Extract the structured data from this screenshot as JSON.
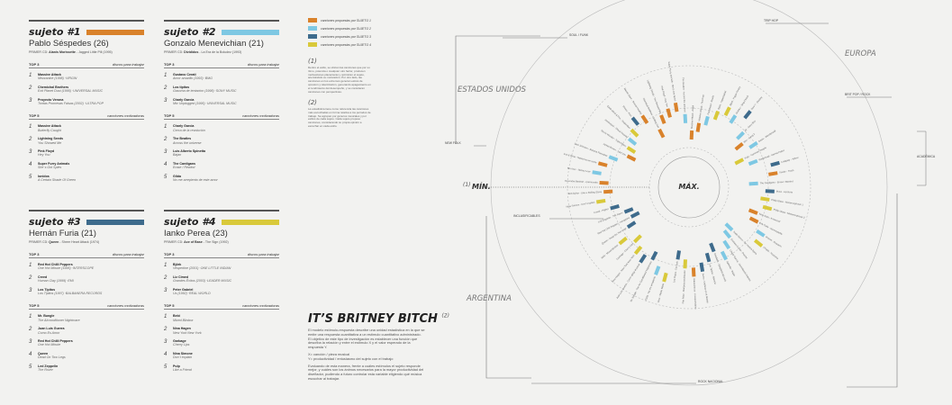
{
  "colors": {
    "s1": "#d9822b",
    "s2": "#7ec8e3",
    "s3": "#3e6b8c",
    "s4": "#d9c93a",
    "rule": "#555555",
    "axis": "#777777"
  },
  "labels": {
    "top3": "TOP 3",
    "top5": "TOP 5",
    "discos": "discos para trabajar",
    "canciones": "canciones motivadoras",
    "primer_cd": "PRIMER CD:"
  },
  "subjects": [
    {
      "tag": "sujeto #1",
      "name": "Pablo Séspedes (26)",
      "cd_artist": "Alanis Morissette",
      "cd_album": "- Jagged Little Pill (1995)",
      "albums": [
        {
          "n": "1",
          "t1": "Massive Attack",
          "t2": "Mezzanine (1998) ·VIRGIN"
        },
        {
          "n": "2",
          "t1": "Chemichal Brothers",
          "t2": "Exit Planet Dust (1995) ·UNIVERSAL MUSIC"
        },
        {
          "n": "3",
          "t1": "Proyecto Verona",
          "t2": "Tontas Promesas Falsas (2002) ·ULTRA POP"
        }
      ],
      "songs": [
        {
          "n": "1",
          "t1": "Massive Attack",
          "t2": "Butterfly Caught"
        },
        {
          "n": "2",
          "t1": "Lightning Seeds",
          "t2": "You Showed Me"
        },
        {
          "n": "3",
          "t1": "Pink Floyd",
          "t2": "Hey You"
        },
        {
          "n": "4",
          "t1": "Super Furry Animals",
          "t2": "She´s Got Spies"
        },
        {
          "n": "5",
          "t1": "Ionidos",
          "t2": "A Certain Shade Of Green"
        }
      ]
    },
    {
      "tag": "sujeto #2",
      "name": "Gonzalo Menevichian (21)",
      "cd_artist": "Divididos",
      "cd_album": "- La Era de la Boludez (1993)",
      "albums": [
        {
          "n": "1",
          "t1": "Gustavo Cerati",
          "t2": "Amor amarillo (1993) ·BMG"
        },
        {
          "n": "2",
          "t1": "Los tipitos",
          "t2": "Gasoma de tentacion (1998) ·SONY MUSIC"
        },
        {
          "n": "3",
          "t1": "Charly Garcia",
          "t2": "Mtv Unplugged (1995) ·UNIVERSAL MUSIC"
        }
      ],
      "songs": [
        {
          "n": "1",
          "t1": "Charly Garcia",
          "t2": "Cerca de la revolución"
        },
        {
          "n": "2",
          "t1": "The Beatles",
          "t2": "Across the universe"
        },
        {
          "n": "3",
          "t1": "Luis Alberto Spinetta",
          "t2": "Bajan"
        },
        {
          "n": "4",
          "t1": "The Cardigans",
          "t2": "Erase / Rewind"
        },
        {
          "n": "5",
          "t1": "Gilda",
          "t2": "No me arrepiento de este amor"
        }
      ]
    },
    {
      "tag": "sujeto #3",
      "name": "Hernán Furia (21)",
      "cd_artist": "Queen",
      "cd_album": "- Sheer Heart Attack (1974)",
      "albums": [
        {
          "n": "1",
          "t1": "Red Hot Chilli Peppers",
          "t2": "One Hot Minute (1995) ·INTERSCOPE"
        },
        {
          "n": "2",
          "t1": "Creed",
          "t2": "Human Clay (1999) ·EMI"
        },
        {
          "n": "3",
          "t1": "Los Tipitos",
          "t2": "Los Tipitos (1997) ·BALBANERA RECORDS"
        }
      ],
      "songs": [
        {
          "n": "1",
          "t1": "Mr. Bungle",
          "t2": "The Airconditioner Nightmare"
        },
        {
          "n": "2",
          "t1": "Juan Luis Guerra",
          "t2": "Como Es Amor"
        },
        {
          "n": "3",
          "t1": "Red Hot Chilli Peppers",
          "t2": "One Hot Minute"
        },
        {
          "n": "4",
          "t1": "Queen",
          "t2": "Dead On Two Legs"
        },
        {
          "n": "5",
          "t1": "Led Zeppelin",
          "t2": "The Rover"
        }
      ]
    },
    {
      "tag": "sujeto #4",
      "name": "Ianko Perea (23)",
      "cd_artist": "Ace of Base",
      "cd_album": "- The Sign (1992)",
      "albums": [
        {
          "n": "1",
          "t1": "Björk",
          "t2": "Vespertine (2001) ·ONE LITTLE INDIAN"
        },
        {
          "n": "2",
          "t1": "Liz Cimed",
          "t2": "Grandes Éxitos (2003) ·LEADER MUSIC"
        },
        {
          "n": "3",
          "t1": "Peter Gabriel",
          "t2": "Us (1992) ·REAL WORLD"
        }
      ],
      "songs": [
        {
          "n": "1",
          "t1": "Bebi",
          "t2": "Mixed Blinbox"
        },
        {
          "n": "2",
          "t1": "Nina Hagen",
          "t2": "New York New York"
        },
        {
          "n": "3",
          "t1": "Garbage",
          "t2": "Cherry Lips"
        },
        {
          "n": "4",
          "t1": "Nina Simone",
          "t2": "Don´t explain"
        },
        {
          "n": "5",
          "t1": "Pulp",
          "t2": "Like a Friend"
        }
      ]
    }
  ],
  "legend": [
    {
      "text": "canciones propuestas por SUJETO 1",
      "color": "#d9822b"
    },
    {
      "text": "canciones propuestas por SUJETO 2",
      "color": "#7ec8e3"
    },
    {
      "text": "canciones propuestas por SUJETO 3",
      "color": "#3e6b8c"
    },
    {
      "text": "canciones propuestas por SUJETO 4",
      "color": "#d9c93a"
    }
  ],
  "note1": {
    "head": "(1)",
    "text": "Dentro el estilo, se ubican las canciones que por su ritmo, potencia o cualquier otro factor, producen motivaciones placenteras y optimizan el sujeto, acercándolo su motivación. Por otro lado, las canciones en los extremos generan estrés de opresión y ralentización, generando apagamiento en el rendimiento del desempeño, y se consideran canciones con perspectivas."
  },
  "note2": {
    "head": "(2)",
    "text": "La estadística tiene como referencia las canciones más escuchadas en forma relativa a los períodos de trabajo. Se agrupan por géneros musicales y por estilos de cada sujeto. Cada sujeto propuso canciones, considerando su propia opinión a escuchar en cada estilo."
  },
  "britney": {
    "title": "IT’S BRITNEY BITCH",
    "sup": "(2)",
    "p1": "El modelo estímulo-respuesta describe una unidad estadística en la que se emite una respuesta cuantitativa a un estímulo cuantitativo administrado. El objetivo de este tipo de investigación es establecer una función que describa la relación y entre el estímulo X y el valor esperado de la respuesta Y.",
    "p2": "X= canción / pieza musical\nY= productividad / entusiasmo del sujeto con el trabajo",
    "p3": "Evaluando de esta manera, frente a cuáles estímulos el sujeto responde mejor, y cuáles son los ánimos necesarios para la mayor productividad del diseñador, pudiendo a futuro controlar esta variable eligiendo qué música escuchar al trabajar."
  },
  "chart_data": {
    "type": "radial-bar",
    "center_label": "MÁX.",
    "edge_label": "MÍN.",
    "edge_note": "(1)",
    "regions": [
      "ESTADOS UNIDOS",
      "EUROPA",
      "ARGENTINA"
    ],
    "genres": [
      "SOUL / FUNK",
      "TRIP HOP",
      "BRIT POP / ROCK",
      "ACADÉMICA",
      "ROCK NACIONAL",
      "INCLASIFICABLES",
      "NEW FOLK"
    ],
    "ring_scale": [
      "MÍN.",
      "MÁX."
    ],
    "series": [
      "SUJETO 1",
      "SUJETO 2",
      "SUJETO 3",
      "SUJETO 4"
    ],
    "songs": [
      {
        "label": "Massive Attack - Angel",
        "subject": 1,
        "value": 0.9
      },
      {
        "label": "Massive Attack - Teardrop",
        "subject": 1,
        "value": 0.8
      },
      {
        "label": "Portishead - Roads",
        "subject": 2,
        "value": 0.7
      },
      {
        "label": "Björk - Hyperballad",
        "subject": 4,
        "value": 0.6
      },
      {
        "label": "Björk - Pagan Poetry",
        "subject": 4,
        "value": 0.5
      },
      {
        "label": "Moloko - Sing it back",
        "subject": 2,
        "value": 0.55
      },
      {
        "label": "Zero 7 - Destiny",
        "subject": 3,
        "value": 0.4
      },
      {
        "label": "Air - Sexy Boy",
        "subject": 2,
        "value": 0.65
      },
      {
        "label": "Blur - Song 2",
        "subject": 1,
        "value": 0.75
      },
      {
        "label": "Oasis - Wonderwall",
        "subject": 2,
        "value": 0.6
      },
      {
        "label": "Pulp - Common People",
        "subject": 4,
        "value": 0.85
      },
      {
        "label": "Radiohead - Karma Police",
        "subject": 2,
        "value": 0.7
      },
      {
        "label": "Coldplay - Yellow",
        "subject": 3,
        "value": 0.45
      },
      {
        "label": "Suede - Trash",
        "subject": 1,
        "value": 0.5
      },
      {
        "label": "The Cardigans - Erase / Rewind",
        "subject": 2,
        "value": 0.75
      },
      {
        "label": "Muse - Hysteria",
        "subject": 3,
        "value": 0.55
      },
      {
        "label": "Philip Glass - Metamorphosis 1",
        "subject": 4,
        "value": 0.6
      },
      {
        "label": "Philip Glass - Metamorphosis 2",
        "subject": 4,
        "value": 0.55
      },
      {
        "label": "Nino Rota - Amarcord",
        "subject": 1,
        "value": 0.7
      },
      {
        "label": "Erik Satie - Gymnopedie",
        "subject": 1,
        "value": 0.65
      },
      {
        "label": "Mozart - Requiem",
        "subject": 2,
        "value": 0.5
      },
      {
        "label": "Chopin - Nocturne",
        "subject": 4,
        "value": 0.45
      },
      {
        "label": "Soda Stereo - De música ligera",
        "subject": 2,
        "value": 0.85
      },
      {
        "label": "Gustavo Cerati - Puente",
        "subject": 2,
        "value": 0.8
      },
      {
        "label": "Charly García - Demoliendo hoteles",
        "subject": 2,
        "value": 0.7
      },
      {
        "label": "Spinetta - Bajan",
        "subject": 2,
        "value": 0.6
      },
      {
        "label": "Divididos - Spaghetti del rock",
        "subject": 3,
        "value": 0.75
      },
      {
        "label": "Los Tipitos - Silencio",
        "subject": 3,
        "value": 0.65
      },
      {
        "label": "Sumo - Mañana en el Abasto",
        "subject": 3,
        "value": 0.55
      },
      {
        "label": "Babasónicos - Irresponsables",
        "subject": 1,
        "value": 0.5
      },
      {
        "label": "Fito Páez - Mariposa tecknicolor",
        "subject": 4,
        "value": 0.6
      },
      {
        "label": "Los Piojos - Tan solo",
        "subject": 3,
        "value": 0.7
      },
      {
        "label": "Virus - Wadu Wadu",
        "subject": 4,
        "value": 0.4
      },
      {
        "label": "Gilda - No me arrepiento",
        "subject": 2,
        "value": 0.45
      },
      {
        "label": "Mr. Bungle - The Air-Conditioned Nightmare",
        "subject": 3,
        "value": 0.6
      },
      {
        "label": "Juan Luis Guerra - Como abeja al panal",
        "subject": 3,
        "value": 0.5
      },
      {
        "label": "Nina Hagen - New York New York",
        "subject": 4,
        "value": 0.55
      },
      {
        "label": "Garbage - Cherry Lips",
        "subject": 4,
        "value": 0.65
      },
      {
        "label": "Bebi - Mixed Blinbox",
        "subject": 4,
        "value": 0.5
      },
      {
        "label": "Queen - Dead On Two Legs",
        "subject": 3,
        "value": 0.7
      },
      {
        "label": "Red Hot Chili Peppers - Aeroplane",
        "subject": 3,
        "value": 0.8
      },
      {
        "label": "Led Zeppelin - The Rover",
        "subject": 3,
        "value": 0.75
      },
      {
        "label": "Creed - Higher",
        "subject": 3,
        "value": 0.6
      },
      {
        "label": "Nina Simone - Don't explain",
        "subject": 4,
        "value": 0.45
      },
      {
        "label": "Bob Dylan - Like a Rolling Stone",
        "subject": 1,
        "value": 0.55
      },
      {
        "label": "Devendra Banhart - Carmensita",
        "subject": 1,
        "value": 0.5
      },
      {
        "label": "Bon Iver - Skinny Love",
        "subject": 2,
        "value": 0.4
      },
      {
        "label": "Iron & Wine - Naked as we came",
        "subject": 1,
        "value": 0.45
      },
      {
        "label": "Jack Johnson - Banana Pancakes",
        "subject": 2,
        "value": 0.55
      },
      {
        "label": "James Brown - I got you",
        "subject": 1,
        "value": 0.75
      },
      {
        "label": "Stevie Wonder - Superstition",
        "subject": 4,
        "value": 0.7
      },
      {
        "label": "Jamiroquai - Virtual Insanity",
        "subject": 2,
        "value": 0.65
      },
      {
        "label": "Earth Wind & Fire - September",
        "subject": 4,
        "value": 0.6
      },
      {
        "label": "Prince - Kiss",
        "subject": 3,
        "value": 0.5
      },
      {
        "label": "Marvin Gaye - Sexual Healing",
        "subject": 1,
        "value": 0.55
      },
      {
        "label": "Chemical Brothers - Setting Sun",
        "subject": 1,
        "value": 0.8
      },
      {
        "label": "Lightning Seeds - You Showed Me",
        "subject": 1,
        "value": 0.65
      },
      {
        "label": "Pink Floyd - Hey You",
        "subject": 1,
        "value": 0.6
      },
      {
        "label": "Super Furry Animals - She's Got Spies",
        "subject": 1,
        "value": 0.55
      },
      {
        "label": "The Beatles - Across the universe",
        "subject": 2,
        "value": 0.7
      }
    ]
  }
}
